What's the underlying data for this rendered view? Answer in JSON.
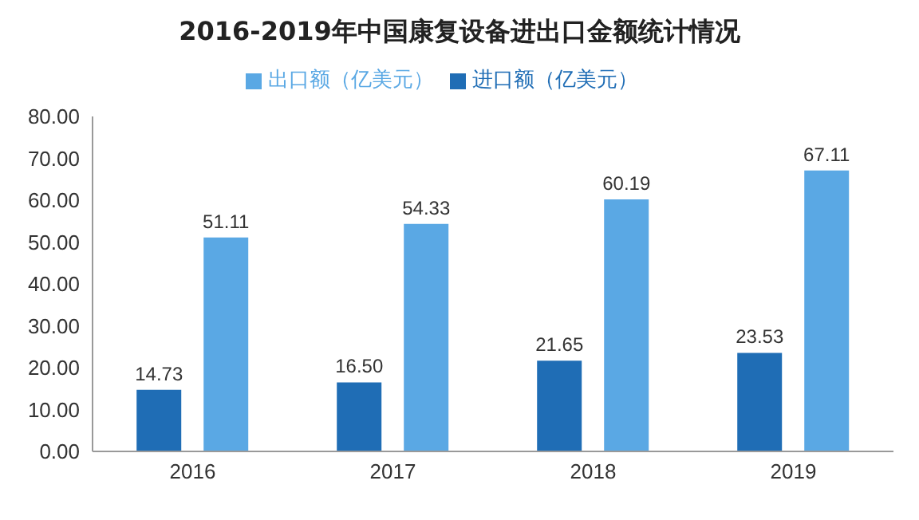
{
  "chart_data": {
    "type": "bar",
    "title": "2016-2019年中国康复设备进出口金额统计情况",
    "categories": [
      "2016",
      "2017",
      "2018",
      "2019"
    ],
    "series": [
      {
        "name": "进口额（亿美元）",
        "color": "#1f6db5",
        "values": [
          14.73,
          16.5,
          21.65,
          23.53
        ],
        "value_labels": [
          "14.73",
          "16.50",
          "21.65",
          "23.53"
        ]
      },
      {
        "name": "出口额（亿美元）",
        "color": "#5aa8e4",
        "values": [
          51.11,
          54.33,
          60.19,
          67.11
        ],
        "value_labels": [
          "51.11",
          "54.33",
          "60.19",
          "67.11"
        ]
      }
    ],
    "ylim": [
      0,
      80
    ],
    "yticks": [
      {
        "value": 0,
        "label": "0.00"
      },
      {
        "value": 10,
        "label": "10.00"
      },
      {
        "value": 20,
        "label": "20.00"
      },
      {
        "value": 30,
        "label": "30.00"
      },
      {
        "value": 40,
        "label": "40.00"
      },
      {
        "value": 50,
        "label": "50.00"
      },
      {
        "value": 60,
        "label": "60.00"
      },
      {
        "value": 70,
        "label": "70.00"
      },
      {
        "value": 80,
        "label": "80.00"
      }
    ],
    "grid": false,
    "legend": "top"
  }
}
